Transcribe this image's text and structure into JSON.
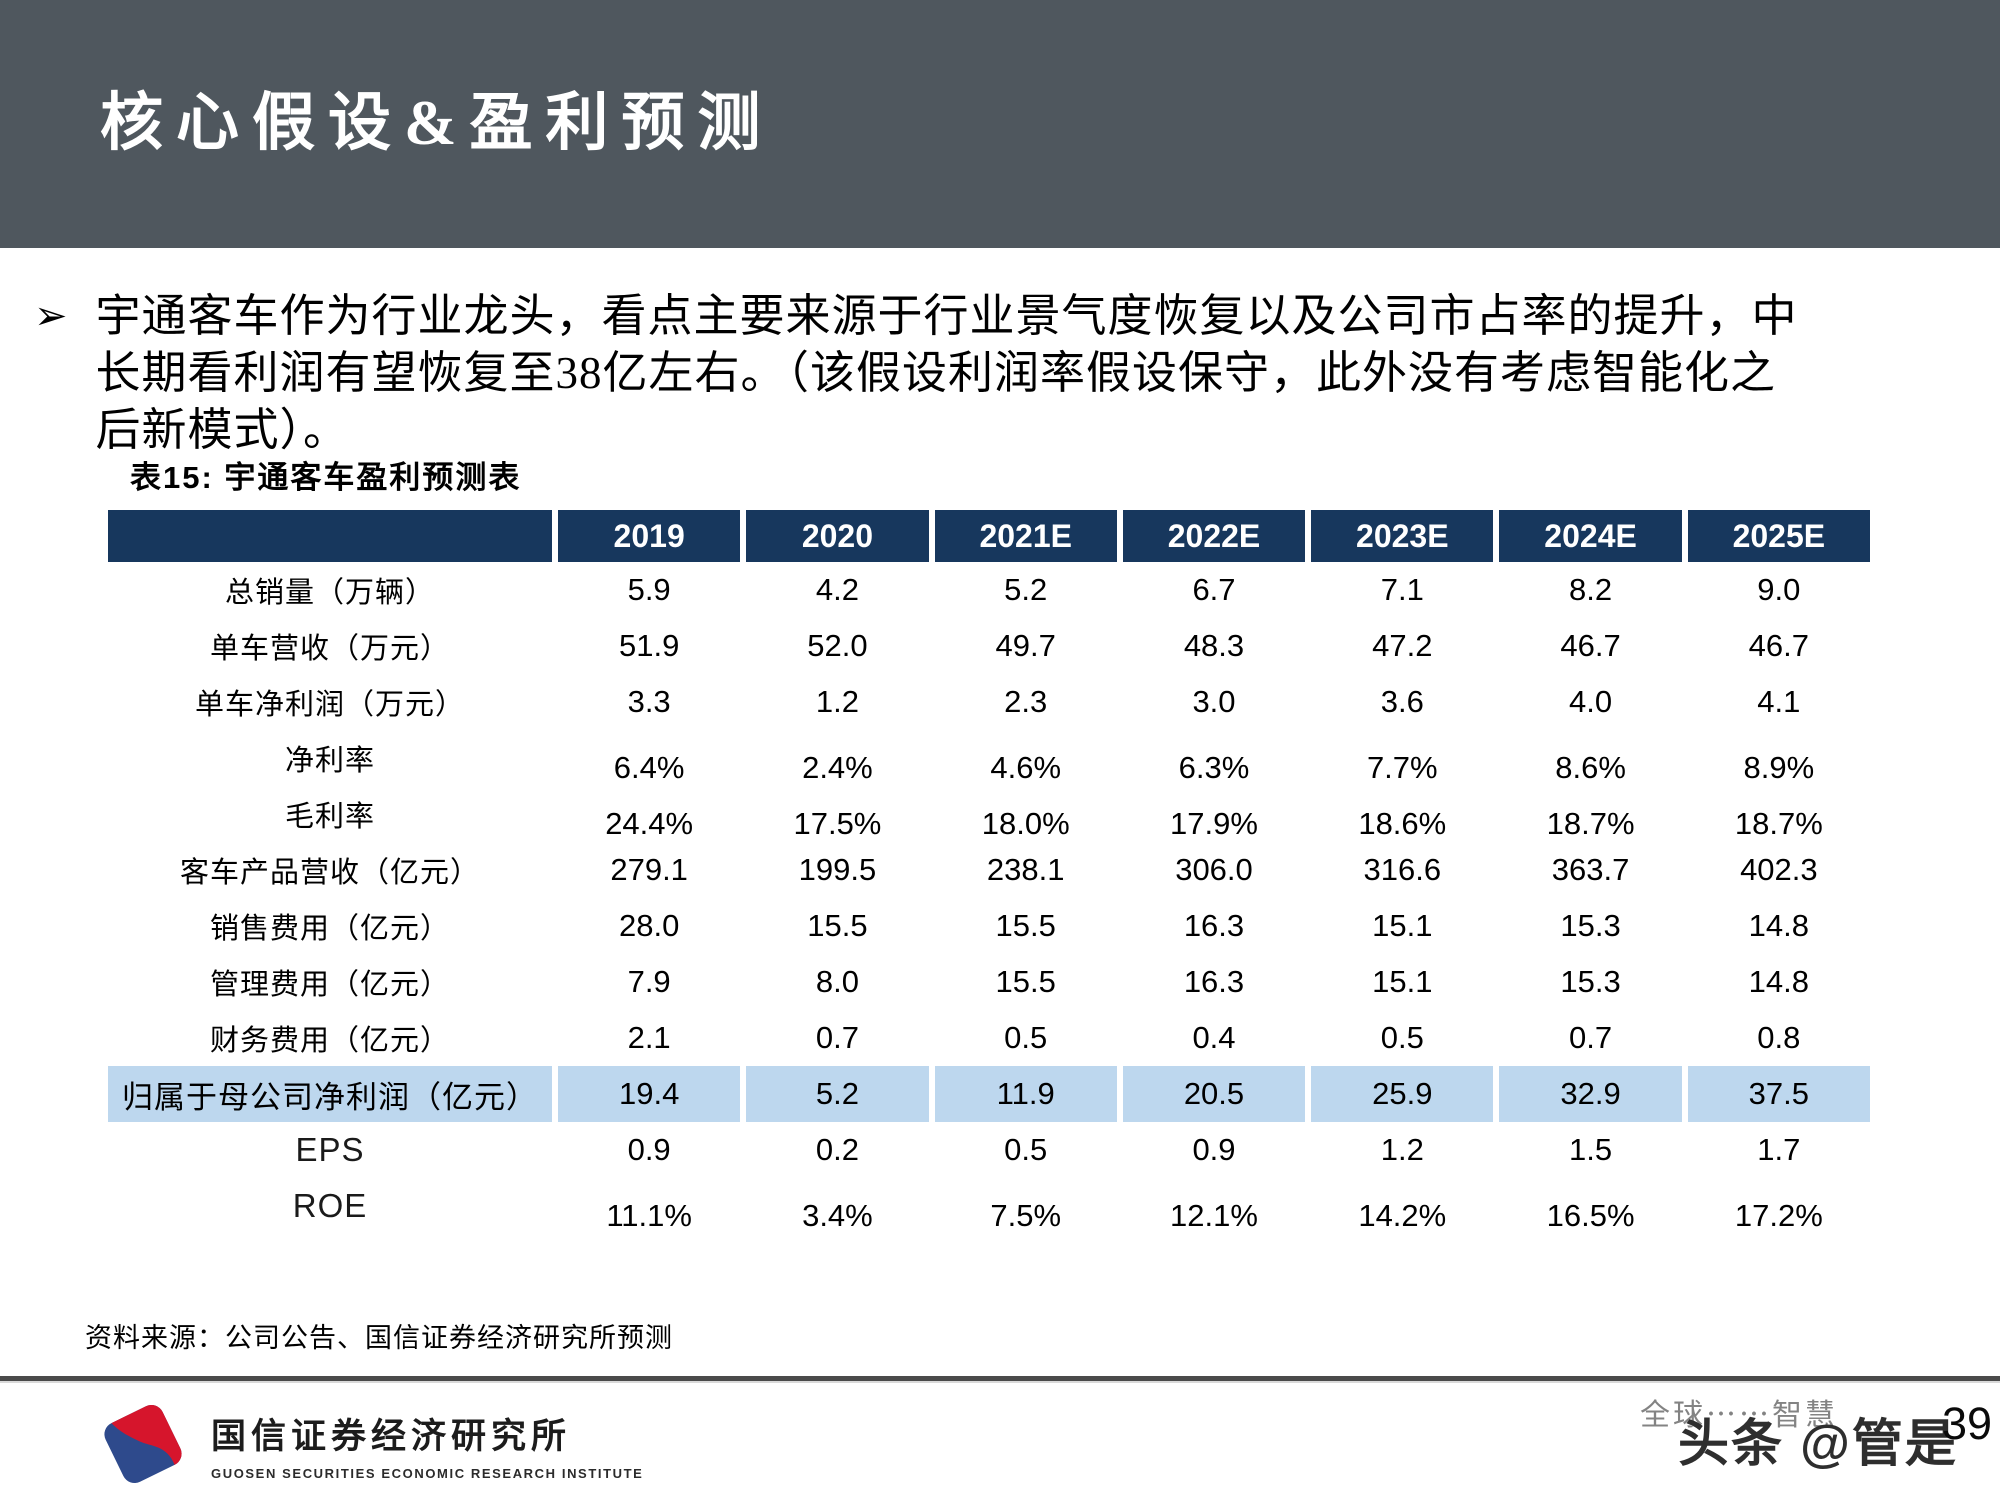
{
  "slide": {
    "title": "核心假设&盈利预测",
    "bullet": {
      "marker": "➢",
      "lines": [
        "宇通客车作为行业龙头，看点主要来源于行业景气度恢复以及公司市占率的提升，中",
        "长期看利润有望恢复至38亿左右。（该假设利润率假设保守，此外没有考虑智能化之",
        "后新模式）。"
      ]
    },
    "table": {
      "caption": "表15: 宇通客车盈利预测表",
      "columns": [
        "",
        "2019",
        "2020",
        "2021E",
        "2022E",
        "2023E",
        "2024E",
        "2025E"
      ],
      "rows": [
        {
          "label": "总销量（万辆）",
          "values": [
            "5.9",
            "4.2",
            "5.2",
            "6.7",
            "7.1",
            "8.2",
            "9.0"
          ],
          "highlight": false
        },
        {
          "label": "单车营收（万元）",
          "values": [
            "51.9",
            "52.0",
            "49.7",
            "48.3",
            "47.2",
            "46.7",
            "46.7"
          ],
          "highlight": false
        },
        {
          "label": "单车净利润（万元）",
          "values": [
            "3.3",
            "1.2",
            "2.3",
            "3.0",
            "3.6",
            "4.0",
            "4.1"
          ],
          "highlight": false
        },
        {
          "label": "净利率",
          "values": [
            "6.4%",
            "2.4%",
            "4.6%",
            "6.3%",
            "7.7%",
            "8.6%",
            "8.9%"
          ],
          "highlight": false
        },
        {
          "label": "毛利率",
          "values": [
            "24.4%",
            "17.5%",
            "18.0%",
            "17.9%",
            "18.6%",
            "18.7%",
            "18.7%"
          ],
          "highlight": false
        },
        {
          "label": "客车产品营收（亿元）",
          "values": [
            "279.1",
            "199.5",
            "238.1",
            "306.0",
            "316.6",
            "363.7",
            "402.3"
          ],
          "highlight": false
        },
        {
          "label": "销售费用（亿元）",
          "values": [
            "28.0",
            "15.5",
            "15.5",
            "16.3",
            "15.1",
            "15.3",
            "14.8"
          ],
          "highlight": false
        },
        {
          "label": "管理费用（亿元）",
          "values": [
            "7.9",
            "8.0",
            "15.5",
            "16.3",
            "15.1",
            "15.3",
            "14.8"
          ],
          "highlight": false
        },
        {
          "label": "财务费用（亿元）",
          "values": [
            "2.1",
            "0.7",
            "0.5",
            "0.4",
            "0.5",
            "0.7",
            "0.8"
          ],
          "highlight": false
        },
        {
          "label": "归属于母公司净利润（亿元）",
          "values": [
            "19.4",
            "5.2",
            "11.9",
            "20.5",
            "25.9",
            "32.9",
            "37.5"
          ],
          "highlight": true
        },
        {
          "label": "EPS",
          "values": [
            "0.9",
            "0.2",
            "0.5",
            "0.9",
            "1.2",
            "1.5",
            "1.7"
          ],
          "highlight": false
        },
        {
          "label": "ROE",
          "values": [
            "11.1%",
            "3.4%",
            "7.5%",
            "12.1%",
            "14.2%",
            "16.5%",
            "17.2%"
          ],
          "highlight": false
        }
      ]
    },
    "source": "资料来源：公司公告、国信证券经济研究所预测",
    "footer": {
      "logo_cn": "国信证券经济研究所",
      "logo_en": "GUOSEN SECURITIES ECONOMIC RESEARCH INSTITUTE"
    },
    "watermark": {
      "faint_text": "全球⋯⋯智慧",
      "bold_text": "头条 @管是",
      "page_number": "39"
    },
    "colors": {
      "band": "#4F575E",
      "table_header": "#17375D",
      "highlight_row": "#BDD7EE",
      "logo_blue": "#2E4A8C",
      "logo_red": "#D6152C"
    }
  }
}
